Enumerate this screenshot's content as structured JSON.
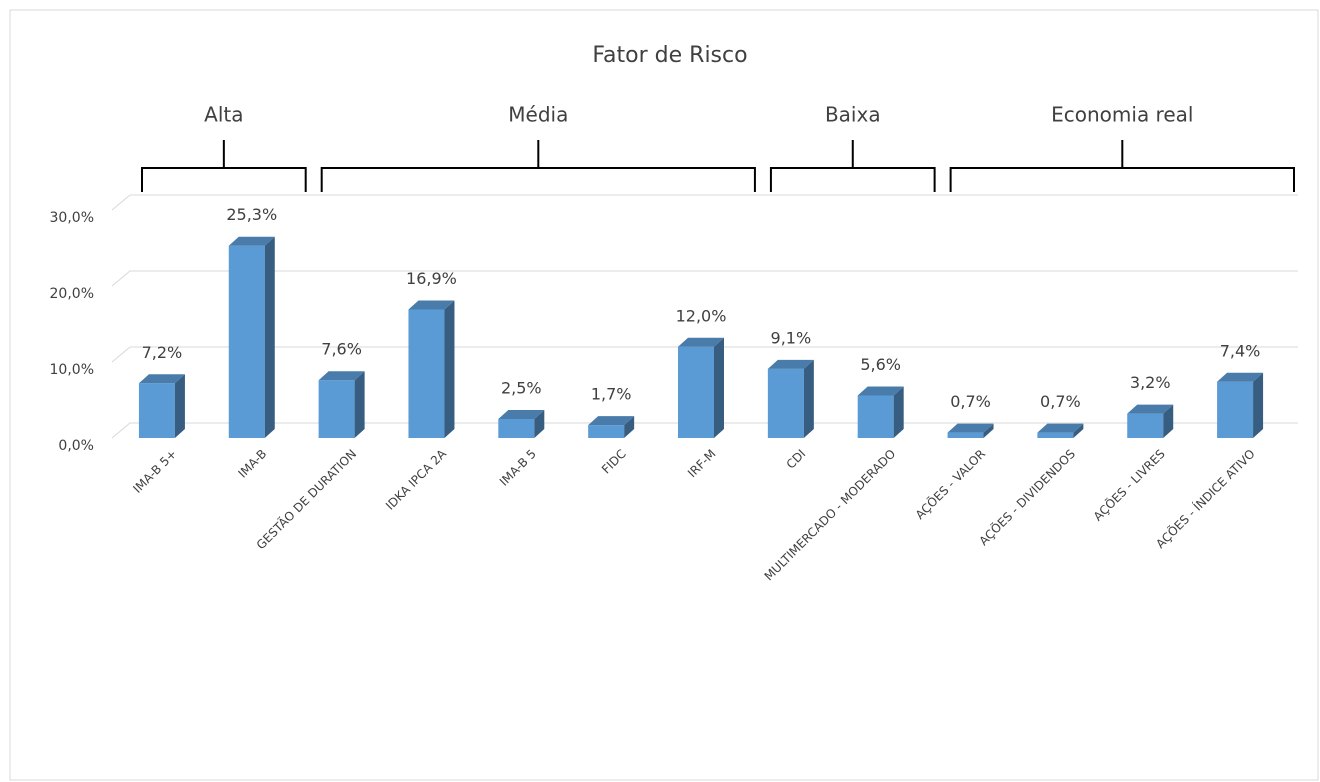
{
  "chart_data": {
    "type": "bar3d",
    "title": "Fator de Risco",
    "categories": [
      "IMA-B 5+",
      "IMA-B",
      "GESTÃO DE DURATION",
      "IDKA IPCA 2A",
      "IMA-B 5",
      "FIDC",
      "IRF-M",
      "CDI",
      "MULTIMERCADO - MODERADO",
      "AÇÕES - VALOR",
      "AÇÕES - DIVIDENDOS",
      "AÇÕES - LIVRES",
      "AÇÕES - ÍNDICE ATIVO"
    ],
    "values": [
      7.2,
      25.3,
      7.6,
      16.9,
      2.5,
      1.7,
      12.0,
      9.1,
      5.6,
      0.7,
      0.7,
      3.2,
      7.4
    ],
    "value_labels": [
      "7,2%",
      "25,3%",
      "7,6%",
      "16,9%",
      "2,5%",
      "1,7%",
      "12,0%",
      "9,1%",
      "5,6%",
      "0,7%",
      "0,7%",
      "3,2%",
      "7,4%"
    ],
    "color": "#5b9bd5",
    "ylim": [
      0,
      30
    ],
    "yticks": [
      {
        "value": 0,
        "label": "0,0%"
      },
      {
        "value": 10,
        "label": "10,0%"
      },
      {
        "value": 20,
        "label": "20,0%"
      },
      {
        "value": 30,
        "label": "30,0%"
      }
    ],
    "grid": true,
    "groups": [
      {
        "label": "Alta",
        "count": 2
      },
      {
        "label": "Média",
        "count": 5
      },
      {
        "label": "Baixa",
        "count": 2
      },
      {
        "label": "Economia real",
        "count": 4
      }
    ]
  }
}
